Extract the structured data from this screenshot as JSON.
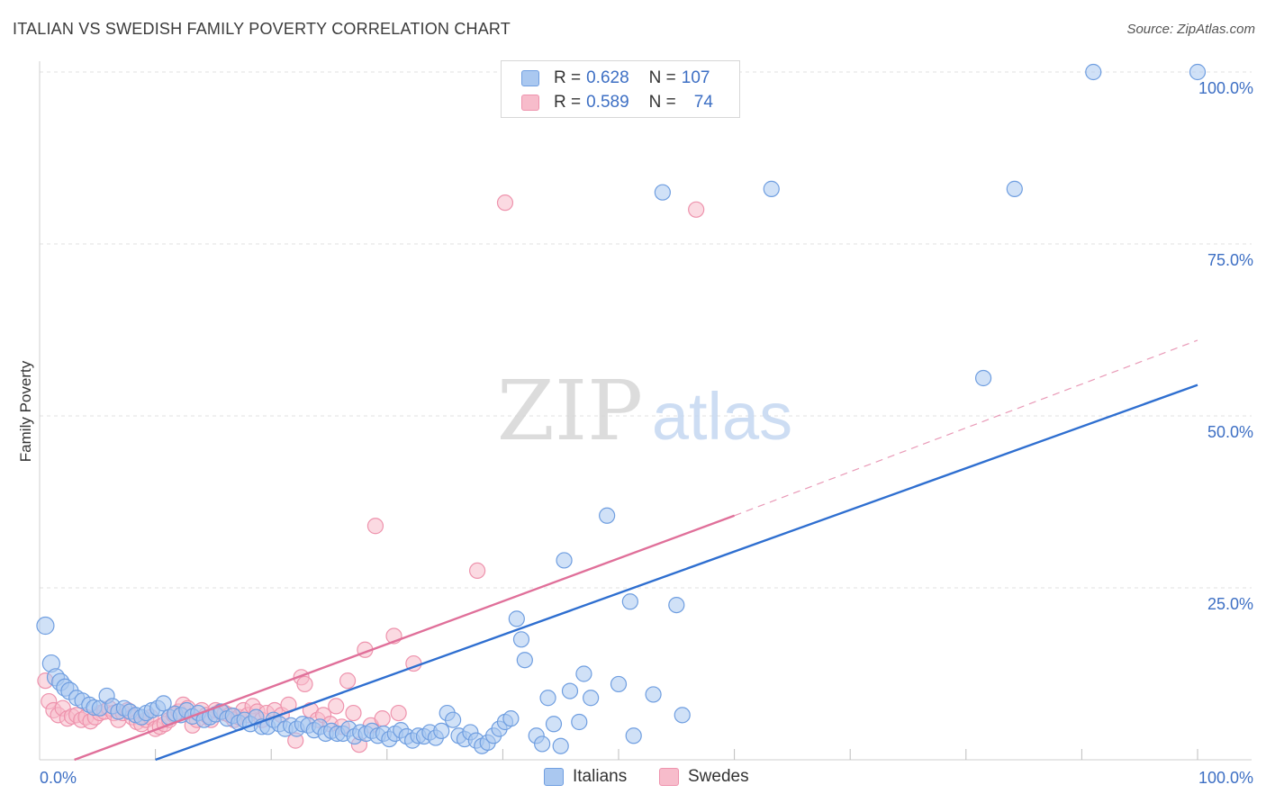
{
  "title": "ITALIAN VS SWEDISH FAMILY POVERTY CORRELATION CHART",
  "source": "Source: ZipAtlas.com",
  "watermark": {
    "zip": "ZIP",
    "atlas": "atlas"
  },
  "legend": {
    "rows": [
      {
        "r_label": "R =",
        "r_value": "0.628",
        "n_label": "N =",
        "n_value": "107"
      },
      {
        "r_label": "R =",
        "r_value": "0.589",
        "n_label": "N =",
        "n_value": "74"
      }
    ]
  },
  "colors": {
    "italians_fill": "#aac8f0",
    "italians_stroke": "#6f9ee0",
    "italians_line": "#2f6fd0",
    "swedes_fill": "#f7bccb",
    "swedes_stroke": "#ee93ad",
    "swedes_line": "#e0709a",
    "axis_label": "#3d6fc4",
    "grid": "#e2e2e2"
  },
  "chart_data": {
    "type": "scatter",
    "title": "ITALIAN VS SWEDISH FAMILY POVERTY CORRELATION CHART",
    "xlabel": "",
    "ylabel": "Family Poverty",
    "xlim": [
      0,
      100
    ],
    "ylim": [
      0,
      100
    ],
    "x_tick_labels": [
      "0.0%",
      "100.0%"
    ],
    "y_ticks": [
      25,
      50,
      75,
      100
    ],
    "y_tick_labels": [
      "25.0%",
      "50.0%",
      "75.0%",
      "100.0%"
    ],
    "grid": true,
    "legend_position": "top-center",
    "series": [
      {
        "name": "Italians",
        "r": 0.628,
        "n": 107,
        "trend": {
          "x": [
            10,
            100
          ],
          "y": [
            0,
            54.5
          ]
        },
        "points": [
          [
            0.5,
            19.5
          ],
          [
            1,
            14
          ],
          [
            1.4,
            12
          ],
          [
            1.8,
            11.3
          ],
          [
            2.2,
            10.5
          ],
          [
            2.6,
            10
          ],
          [
            3.2,
            9
          ],
          [
            3.7,
            8.6
          ],
          [
            4.3,
            8
          ],
          [
            4.7,
            7.6
          ],
          [
            5.2,
            7.5
          ],
          [
            5.8,
            9.3
          ],
          [
            6.3,
            7.8
          ],
          [
            6.8,
            7
          ],
          [
            7.3,
            7.5
          ],
          [
            7.8,
            7
          ],
          [
            8.3,
            6.5
          ],
          [
            8.8,
            6.2
          ],
          [
            9.2,
            6.8
          ],
          [
            9.7,
            7.2
          ],
          [
            10.2,
            7.5
          ],
          [
            10.7,
            8.2
          ],
          [
            11.2,
            6.2
          ],
          [
            11.7,
            6.7
          ],
          [
            12.2,
            6.5
          ],
          [
            12.7,
            7.2
          ],
          [
            13.2,
            6.3
          ],
          [
            13.7,
            6.8
          ],
          [
            14.2,
            5.8
          ],
          [
            14.7,
            6.2
          ],
          [
            15.2,
            6.6
          ],
          [
            15.7,
            7
          ],
          [
            16.2,
            6
          ],
          [
            16.7,
            6.4
          ],
          [
            17.2,
            5.4
          ],
          [
            17.7,
            5.8
          ],
          [
            18.2,
            5.2
          ],
          [
            18.7,
            6.2
          ],
          [
            19.2,
            4.8
          ],
          [
            19.7,
            4.8
          ],
          [
            20.2,
            5.8
          ],
          [
            20.7,
            5.2
          ],
          [
            21.2,
            4.5
          ],
          [
            21.7,
            5
          ],
          [
            22.2,
            4.5
          ],
          [
            22.7,
            5.2
          ],
          [
            23.2,
            5
          ],
          [
            23.7,
            4.3
          ],
          [
            24.2,
            4.8
          ],
          [
            24.7,
            3.8
          ],
          [
            25.2,
            4.2
          ],
          [
            25.7,
            3.8
          ],
          [
            26.2,
            3.8
          ],
          [
            26.7,
            4.5
          ],
          [
            27.2,
            3.4
          ],
          [
            27.7,
            4
          ],
          [
            28.2,
            3.8
          ],
          [
            28.7,
            4.2
          ],
          [
            29.2,
            3.5
          ],
          [
            29.7,
            3.8
          ],
          [
            30.2,
            3
          ],
          [
            30.7,
            3.8
          ],
          [
            31.2,
            4.3
          ],
          [
            31.7,
            3.4
          ],
          [
            32.2,
            2.8
          ],
          [
            32.7,
            3.5
          ],
          [
            33.2,
            3.4
          ],
          [
            33.7,
            4
          ],
          [
            34.2,
            3.2
          ],
          [
            34.7,
            4.2
          ],
          [
            35.2,
            6.8
          ],
          [
            35.7,
            5.8
          ],
          [
            36.2,
            3.5
          ],
          [
            36.7,
            3
          ],
          [
            37.2,
            4
          ],
          [
            37.7,
            2.8
          ],
          [
            38.2,
            2
          ],
          [
            38.7,
            2.5
          ],
          [
            39.2,
            3.5
          ],
          [
            39.7,
            4.5
          ],
          [
            40.2,
            5.5
          ],
          [
            40.7,
            6
          ],
          [
            41.2,
            20.5
          ],
          [
            41.6,
            17.5
          ],
          [
            41.9,
            14.5
          ],
          [
            42.9,
            3.5
          ],
          [
            43.4,
            2.3
          ],
          [
            43.9,
            9
          ],
          [
            44.4,
            5.2
          ],
          [
            45,
            2
          ],
          [
            45.3,
            29
          ],
          [
            45.8,
            10
          ],
          [
            46.6,
            5.5
          ],
          [
            47,
            12.5
          ],
          [
            47.6,
            9
          ],
          [
            49,
            35.5
          ],
          [
            50,
            11
          ],
          [
            51,
            23
          ],
          [
            51.3,
            3.5
          ],
          [
            53,
            9.5
          ],
          [
            53.8,
            82.5
          ],
          [
            55,
            22.5
          ],
          [
            55.5,
            6.5
          ],
          [
            63.2,
            83
          ],
          [
            81.5,
            55.5
          ],
          [
            84.2,
            83
          ],
          [
            91,
            100
          ],
          [
            100,
            100
          ]
        ]
      },
      {
        "name": "Swedes",
        "r": 0.589,
        "n": 74,
        "trend": {
          "x": [
            3,
            60
          ],
          "y": [
            0,
            35.5
          ]
        },
        "trend_extension": {
          "x": [
            60,
            100
          ],
          "y": [
            35.5,
            61
          ]
        },
        "points": [
          [
            0.5,
            11.5
          ],
          [
            0.8,
            8.5
          ],
          [
            1.2,
            7.2
          ],
          [
            1.6,
            6.5
          ],
          [
            2,
            7.5
          ],
          [
            2.4,
            6
          ],
          [
            2.8,
            6.3
          ],
          [
            3.2,
            6.5
          ],
          [
            3.6,
            5.8
          ],
          [
            4,
            6.2
          ],
          [
            4.4,
            5.6
          ],
          [
            4.8,
            6.2
          ],
          [
            5.2,
            6.8
          ],
          [
            5.6,
            7
          ],
          [
            6,
            7.5
          ],
          [
            6.4,
            6.8
          ],
          [
            6.8,
            5.8
          ],
          [
            7.2,
            6.8
          ],
          [
            7.6,
            7.2
          ],
          [
            8,
            6.2
          ],
          [
            8.4,
            5.5
          ],
          [
            8.8,
            5.2
          ],
          [
            9.2,
            5.8
          ],
          [
            9.6,
            6.2
          ],
          [
            10,
            4.5
          ],
          [
            10.4,
            4.8
          ],
          [
            10.8,
            5.2
          ],
          [
            11.2,
            5.8
          ],
          [
            11.6,
            6.5
          ],
          [
            12,
            7
          ],
          [
            12.4,
            8
          ],
          [
            12.8,
            7.5
          ],
          [
            13.2,
            5
          ],
          [
            13.6,
            5.8
          ],
          [
            14,
            7.2
          ],
          [
            14.4,
            6.5
          ],
          [
            14.8,
            5.8
          ],
          [
            15.2,
            7.2
          ],
          [
            15.6,
            7
          ],
          [
            16,
            6.8
          ],
          [
            16.4,
            6.5
          ],
          [
            16.8,
            5.8
          ],
          [
            17.2,
            6.2
          ],
          [
            17.6,
            7.2
          ],
          [
            18,
            6.5
          ],
          [
            18.4,
            7.8
          ],
          [
            18.8,
            7
          ],
          [
            19.2,
            5.8
          ],
          [
            19.6,
            6.8
          ],
          [
            20.3,
            7.2
          ],
          [
            20.9,
            6.5
          ],
          [
            21.5,
            8
          ],
          [
            22.1,
            2.8
          ],
          [
            22.6,
            12
          ],
          [
            22.9,
            11
          ],
          [
            23.4,
            7.2
          ],
          [
            24,
            5.8
          ],
          [
            24.5,
            6.5
          ],
          [
            25.1,
            5.2
          ],
          [
            25.6,
            7.8
          ],
          [
            26.1,
            4.8
          ],
          [
            26.6,
            11.5
          ],
          [
            27.1,
            6.8
          ],
          [
            27.6,
            2.2
          ],
          [
            28.1,
            16
          ],
          [
            28.6,
            5
          ],
          [
            29,
            34
          ],
          [
            29.6,
            6
          ],
          [
            30.6,
            18
          ],
          [
            31,
            6.8
          ],
          [
            32.3,
            14
          ],
          [
            37.8,
            27.5
          ],
          [
            40.2,
            81
          ],
          [
            56.7,
            80
          ]
        ]
      }
    ]
  },
  "bottom_legend": [
    "Italians",
    "Swedes"
  ]
}
